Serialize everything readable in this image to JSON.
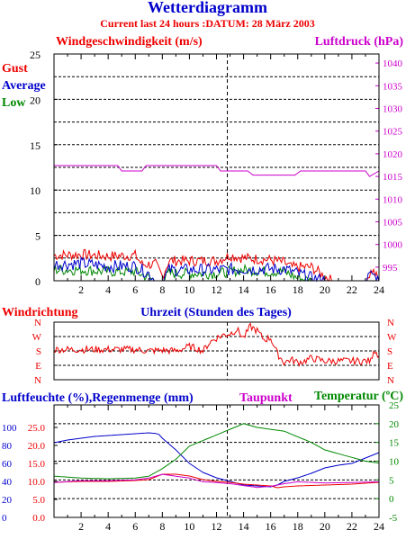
{
  "title": "Wetterdiagramm",
  "subtitle": "Current last 24 hours :DATUM: 28 März 2003",
  "colors": {
    "red": "#ee0000",
    "blue": "#0000cc",
    "green": "#008800",
    "magenta": "#cc00cc",
    "grid": "#000000"
  },
  "chart_data": [
    {
      "type": "line",
      "title": "Windgeschwindigkeit (m/s)",
      "y2_title": "Luftdruck (hPa)",
      "xlabel": "Uhrzeit (Stunden des Tages)",
      "xlim": [
        0,
        24
      ],
      "xticks": [
        "2",
        "4",
        "6",
        "8",
        "10",
        "12",
        "14",
        "16",
        "18",
        "20",
        "22",
        "24"
      ],
      "ylim": [
        0,
        25
      ],
      "yticks": [
        "0",
        "5",
        "10",
        "15",
        "20",
        "25"
      ],
      "y2lim": [
        992,
        1042
      ],
      "y2ticks": [
        "995",
        "1000",
        "1005",
        "1010",
        "1015",
        "1020",
        "1025",
        "1030",
        "1035",
        "1040"
      ],
      "legend": [
        "Gust",
        "Average",
        "Low"
      ],
      "series": [
        {
          "name": "Gust",
          "axis": "left",
          "style": "noisy",
          "x": [
            0,
            2,
            4,
            6,
            6.5,
            7.5,
            8,
            8.5,
            10,
            12,
            13,
            14,
            16,
            17,
            17.5,
            18,
            19,
            20.5,
            23,
            23.5,
            24
          ],
          "y": [
            2.8,
            2.9,
            2.7,
            2.8,
            1.8,
            1.8,
            0.5,
            2.2,
            2.2,
            2.2,
            2.8,
            2.5,
            2.3,
            2.0,
            1.5,
            1.5,
            1.5,
            0,
            0,
            1.2,
            0
          ]
        },
        {
          "name": "Average",
          "axis": "left",
          "style": "noisy",
          "x": [
            0,
            2,
            4,
            6,
            7,
            7.5,
            8,
            8.5,
            10,
            12,
            14,
            16,
            17,
            18,
            19,
            20,
            23,
            23.5,
            24
          ],
          "y": [
            1.8,
            1.9,
            1.6,
            1.6,
            0.8,
            0,
            0,
            1.2,
            1.2,
            1.2,
            1.3,
            1.3,
            1.3,
            0.8,
            0.3,
            0,
            0,
            0.8,
            0
          ]
        },
        {
          "name": "Low",
          "axis": "left",
          "style": "noisy",
          "x": [
            0,
            2,
            4,
            6,
            7.5,
            8,
            8.5,
            10,
            12,
            14,
            16,
            17,
            18,
            19,
            20,
            24
          ],
          "y": [
            1.2,
            1.2,
            1.0,
            1.0,
            0,
            0,
            0.8,
            0.8,
            0.8,
            1.2,
            1.0,
            1.0,
            0.3,
            0,
            0,
            0
          ]
        },
        {
          "name": "Luftdruck",
          "axis": "right",
          "style": "step",
          "x": [
            0,
            4.7,
            5,
            6.5,
            6.8,
            10,
            11,
            12,
            12.3,
            14.3,
            14.7,
            17.8,
            18.2,
            23,
            23.3,
            24
          ],
          "y": [
            1017.4,
            1017.4,
            1016.2,
            1016.2,
            1017.4,
            1017.4,
            1017.4,
            1017.4,
            1016.2,
            1016.2,
            1015.3,
            1015.3,
            1016.2,
            1016.2,
            1015,
            1016.2
          ]
        }
      ]
    },
    {
      "type": "line",
      "title": "Windrichtung",
      "ylim": [
        0,
        4
      ],
      "yticks": [
        "N",
        "W",
        "S",
        "E",
        "N"
      ],
      "y2ticks": [
        "N",
        "W",
        "S",
        "E",
        "N"
      ],
      "series": [
        {
          "name": "Windrichtung",
          "style": "noisy",
          "x": [
            0,
            6,
            7,
            8,
            9,
            10,
            10.5,
            11,
            11.5,
            12,
            12.5,
            13,
            13.5,
            14,
            14.5,
            15,
            15.5,
            16,
            16.5,
            17,
            17.5,
            18,
            18.5,
            19,
            20,
            22,
            23.4,
            23.6,
            24
          ],
          "y": [
            2.1,
            2.1,
            2.0,
            2.05,
            2.0,
            2.3,
            2.2,
            2.0,
            2.6,
            2.9,
            3.1,
            3.2,
            3.5,
            2.9,
            3.7,
            3.4,
            2.8,
            2.9,
            1.8,
            1.2,
            1.4,
            1.2,
            1.3,
            1.5,
            1.3,
            1.3,
            1.3,
            2.1,
            1.7
          ]
        }
      ]
    },
    {
      "type": "line",
      "title": "Luftfeuchte (%),Regenmenge (mm)",
      "y2_title": "Temperatur (ºC)",
      "series_title": "Taupunkt",
      "xlim": [
        0,
        24
      ],
      "xticks": [
        "2",
        "4",
        "6",
        "8",
        "10",
        "12",
        "14",
        "16",
        "18",
        "20",
        "22",
        "24"
      ],
      "ylim": [
        0,
        125
      ],
      "yticks": [
        "0",
        "20",
        "40",
        "60",
        "80",
        "100"
      ],
      "yticks_rain": [
        "0.0",
        "5.0",
        "10.0",
        "15.0",
        "20.0",
        "25.0"
      ],
      "y2lim": [
        -5,
        25
      ],
      "y2ticks": [
        "-5",
        "0",
        "5",
        "10",
        "15",
        "20",
        "25"
      ],
      "series": [
        {
          "name": "Luftfeuchte",
          "axis": "left",
          "x": [
            0,
            1,
            2,
            3,
            4,
            5,
            6,
            7,
            7.7,
            8,
            9,
            10,
            11,
            12,
            13,
            13.5,
            14,
            15,
            16,
            16.5,
            17,
            18,
            19,
            20,
            21,
            22,
            23,
            24
          ],
          "y": [
            83,
            86,
            88,
            90,
            91,
            92,
            93,
            94,
            93,
            88,
            75,
            60,
            50,
            44,
            40,
            38,
            36,
            35,
            34,
            36,
            40,
            44,
            49,
            55,
            58,
            60,
            66,
            72
          ]
        },
        {
          "name": "Regenmenge",
          "axis": "left",
          "x": [
            0,
            2,
            4,
            6,
            7,
            8,
            9,
            10,
            11,
            12,
            13,
            14,
            15,
            16,
            16.5,
            17,
            18,
            20,
            22,
            24
          ],
          "y": [
            39,
            40,
            40,
            41,
            42,
            48,
            48,
            46,
            42,
            40,
            39,
            37,
            36,
            35,
            33,
            34,
            35,
            36,
            37,
            39
          ]
        },
        {
          "name": "Taupunkt",
          "axis": "right",
          "x": [
            0,
            2,
            4,
            6,
            7,
            8,
            9,
            10,
            11,
            12,
            13,
            14,
            15,
            16,
            17,
            18,
            20,
            22,
            24
          ],
          "y": [
            4.3,
            4.8,
            4.8,
            5.0,
            5.5,
            6.5,
            6.0,
            5.5,
            4.5,
            4.3,
            4.0,
            3.5,
            3.0,
            3.3,
            4.0,
            4.5,
            4.2,
            4.3,
            4.5
          ]
        },
        {
          "name": "Temperatur",
          "axis": "right",
          "x": [
            0,
            2,
            4,
            6,
            7,
            8,
            9,
            10,
            11,
            12,
            13,
            14,
            14.5,
            15,
            16,
            17,
            18,
            19,
            20,
            21,
            22,
            23,
            24
          ],
          "y": [
            6.0,
            5.5,
            5.3,
            5.5,
            6.0,
            8.0,
            10.5,
            14.0,
            15.5,
            17.0,
            18.5,
            20.0,
            19.5,
            19.0,
            18.5,
            18.0,
            16.5,
            15.0,
            13.0,
            12.0,
            11.0,
            10.0,
            9.5
          ]
        }
      ]
    }
  ]
}
